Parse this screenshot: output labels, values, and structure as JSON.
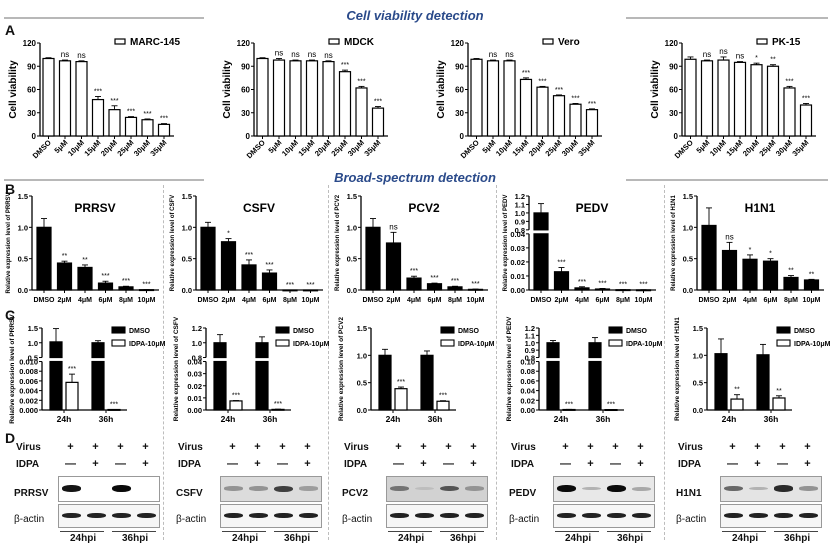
{
  "sections": {
    "top_title": "Cell viability detection",
    "mid_title": "Broad-spectrum detection",
    "letters": [
      "A",
      "B",
      "C",
      "D"
    ]
  },
  "chart_data": [
    {
      "panel": "A",
      "type": "bar",
      "legend": "MARC-145",
      "ylabel": "Cell viability",
      "ylim": [
        0,
        120
      ],
      "yticks": [
        0,
        30,
        60,
        90,
        120
      ],
      "categories": [
        "DMSO",
        "5μM",
        "10μM",
        "15μM",
        "20μM",
        "25μM",
        "30μM",
        "35μM"
      ],
      "values": [
        100,
        97,
        96,
        47,
        34,
        24,
        21,
        15
      ],
      "errors": [
        1,
        1,
        1,
        4,
        5,
        1,
        1,
        1
      ],
      "significance": [
        "",
        "ns",
        "ns",
        "***",
        "***",
        "***",
        "***",
        "***"
      ],
      "fill": "white"
    },
    {
      "panel": "A",
      "type": "bar",
      "legend": "MDCK",
      "ylabel": "Cell viability",
      "ylim": [
        0,
        120
      ],
      "yticks": [
        0,
        30,
        60,
        90,
        120
      ],
      "categories": [
        "DMSO",
        "5μM",
        "10μM",
        "15μM",
        "20μM",
        "25μM",
        "30μM",
        "35μM"
      ],
      "values": [
        100,
        98,
        97,
        97,
        96,
        83,
        62,
        36
      ],
      "errors": [
        1,
        2,
        1,
        1,
        1,
        2,
        2,
        2
      ],
      "significance": [
        "",
        "ns",
        "ns",
        "ns",
        "ns",
        "***",
        "***",
        "***"
      ],
      "fill": "white"
    },
    {
      "panel": "A",
      "type": "bar",
      "legend": "Vero",
      "ylabel": "Cell viability",
      "ylim": [
        0,
        120
      ],
      "yticks": [
        0,
        30,
        60,
        90,
        120
      ],
      "categories": [
        "DMSO",
        "5μM",
        "10μM",
        "15μM",
        "20μM",
        "25μM",
        "30μM",
        "35μM"
      ],
      "values": [
        99,
        97,
        97,
        73,
        63,
        52,
        41,
        34
      ],
      "errors": [
        1,
        1,
        1,
        2,
        1,
        1,
        1,
        1
      ],
      "significance": [
        "",
        "ns",
        "ns",
        "***",
        "***",
        "***",
        "***",
        "***"
      ],
      "fill": "white"
    },
    {
      "panel": "A",
      "type": "bar",
      "legend": "PK-15",
      "ylabel": "Cell viability",
      "ylim": [
        0,
        120
      ],
      "yticks": [
        0,
        30,
        60,
        90,
        120
      ],
      "categories": [
        "DMSO",
        "5μM",
        "10μM",
        "15μM",
        "20μM",
        "25μM",
        "30μM",
        "35μM"
      ],
      "values": [
        99,
        97,
        98,
        95,
        92,
        90,
        62,
        40
      ],
      "errors": [
        3,
        1,
        4,
        1,
        2,
        2,
        2,
        2
      ],
      "significance": [
        "",
        "ns",
        "ns",
        "ns",
        "*",
        "**",
        "***",
        "***"
      ],
      "fill": "white"
    },
    {
      "panel": "B",
      "type": "bar",
      "title": "PRRSV",
      "ylabel": "Relative expression level of PRRSV",
      "ylim": [
        0,
        1.5
      ],
      "yticks": [
        0.0,
        0.5,
        1.0,
        1.5
      ],
      "categories": [
        "DMSO",
        "2μM",
        "4μM",
        "6μM",
        "8μM",
        "10μM"
      ],
      "values": [
        1.0,
        0.43,
        0.36,
        0.11,
        0.05,
        0.005
      ],
      "errors": [
        0.14,
        0.03,
        0.04,
        0.03,
        0.01,
        0.002
      ],
      "significance": [
        "",
        "**",
        "**",
        "***",
        "***",
        "***"
      ],
      "fill": "black"
    },
    {
      "panel": "B",
      "type": "bar",
      "title": "CSFV",
      "ylabel": "Relative expression level of CSFV",
      "ylim": [
        0,
        1.5
      ],
      "yticks": [
        0.0,
        0.5,
        1.0,
        1.5
      ],
      "categories": [
        "DMSO",
        "2μM",
        "4μM",
        "6μM",
        "8μM",
        "10μM"
      ],
      "values": [
        1.0,
        0.77,
        0.4,
        0.27,
        0.0,
        0.0
      ],
      "errors": [
        0.08,
        0.05,
        0.08,
        0.05,
        0,
        0
      ],
      "significance": [
        "",
        "*",
        "***",
        "***",
        "***",
        "***"
      ],
      "fill": "black"
    },
    {
      "panel": "B",
      "type": "bar",
      "title": "PCV2",
      "ylabel": "Relative expression level of PCV2",
      "ylim": [
        0,
        1.5
      ],
      "yticks": [
        0.0,
        0.5,
        1.0,
        1.5
      ],
      "categories": [
        "DMSO",
        "2μM",
        "4μM",
        "6μM",
        "8μM",
        "10μM"
      ],
      "values": [
        1.0,
        0.75,
        0.19,
        0.1,
        0.05,
        0.01
      ],
      "errors": [
        0.14,
        0.17,
        0.03,
        0.01,
        0.01,
        0.005
      ],
      "significance": [
        "",
        "ns",
        "***",
        "***",
        "***",
        "***"
      ],
      "fill": "black"
    },
    {
      "panel": "B",
      "type": "bar",
      "title": "PEDV",
      "ylabel": "Relative expression level of PEDV",
      "broken_axis": {
        "lower": [
          0,
          0.04
        ],
        "upper": [
          0.8,
          1.2
        ]
      },
      "yticks_lower": [
        0.0,
        0.01,
        0.02,
        0.03,
        0.04
      ],
      "yticks_upper": [
        0.8,
        0.9,
        1.0,
        1.1,
        1.2
      ],
      "categories": [
        "DMSO",
        "2μM",
        "4μM",
        "6μM",
        "8μM",
        "10μM"
      ],
      "values": [
        1.0,
        0.013,
        0.0015,
        0.0007,
        0.0002,
        0.0001
      ],
      "errors": [
        0.11,
        0.003,
        0.0008,
        0.0004,
        0.0001,
        0.0001
      ],
      "significance": [
        "",
        "***",
        "***",
        "***",
        "***",
        "***"
      ],
      "fill": "black"
    },
    {
      "panel": "B",
      "type": "bar",
      "title": "H1N1",
      "ylabel": "Relative expression level of H1N1",
      "ylim": [
        0,
        1.5
      ],
      "yticks": [
        0.0,
        0.5,
        1.0,
        1.5
      ],
      "categories": [
        "DMSO",
        "2μM",
        "4μM",
        "6μM",
        "8μM",
        "10μM"
      ],
      "values": [
        1.03,
        0.63,
        0.49,
        0.46,
        0.2,
        0.16
      ],
      "errors": [
        0.28,
        0.13,
        0.07,
        0.04,
        0.03,
        0.01
      ],
      "significance": [
        "",
        "ns",
        "*",
        "*",
        "**",
        "**"
      ],
      "fill": "black"
    },
    {
      "panel": "C",
      "type": "bar",
      "ylabel": "Relative expression level of PRRSV",
      "broken_axis": {
        "lower": [
          0,
          0.01
        ],
        "upper": [
          0.5,
          1.5
        ]
      },
      "yticks_lower": [
        0.0,
        0.002,
        0.004,
        0.006,
        0.008,
        0.01
      ],
      "yticks_upper": [
        0.5,
        1.0,
        1.5
      ],
      "categories": [
        "24h",
        "36h"
      ],
      "series": [
        {
          "name": "DMSO",
          "values": [
            1.03,
            1.0
          ],
          "errors": [
            0.45,
            0.07
          ],
          "fill": "black"
        },
        {
          "name": "IDPA-10μM",
          "values": [
            0.0057,
            0.0001
          ],
          "errors": [
            0.0017,
            0.0
          ],
          "fill": "white"
        }
      ],
      "significance": [
        "***",
        "***"
      ]
    },
    {
      "panel": "C",
      "type": "bar",
      "ylabel": "Relative expression level of CSFV",
      "broken_axis": {
        "lower": [
          0,
          0.04
        ],
        "upper": [
          0.8,
          1.2
        ]
      },
      "yticks_lower": [
        0.0,
        0.01,
        0.02,
        0.03,
        0.04
      ],
      "yticks_upper": [
        0.8,
        1.0,
        1.2
      ],
      "categories": [
        "24h",
        "36h"
      ],
      "series": [
        {
          "name": "DMSO",
          "values": [
            1.0,
            1.0
          ],
          "errors": [
            0.11,
            0.08
          ],
          "fill": "black"
        },
        {
          "name": "IDPA-10μM",
          "values": [
            0.0075,
            0.0005
          ],
          "errors": [
            0.0003,
            0.0002
          ],
          "fill": "white"
        }
      ],
      "significance": [
        "***",
        "***"
      ]
    },
    {
      "panel": "C",
      "type": "bar",
      "ylabel": "Relative expression level of PCV2",
      "ylim": [
        0,
        1.5
      ],
      "yticks": [
        0.0,
        0.5,
        1.0,
        1.5
      ],
      "categories": [
        "24h",
        "36h"
      ],
      "series": [
        {
          "name": "DMSO",
          "values": [
            1.0,
            1.0
          ],
          "errors": [
            0.11,
            0.08
          ],
          "fill": "black"
        },
        {
          "name": "IDPA-10μM",
          "values": [
            0.39,
            0.16
          ],
          "errors": [
            0.03,
            0.01
          ],
          "fill": "white"
        }
      ],
      "significance": [
        "***",
        "***"
      ]
    },
    {
      "panel": "C",
      "type": "bar",
      "ylabel": "Relative expression level of PEDV",
      "broken_axis": {
        "lower": [
          0,
          0.1
        ],
        "upper": [
          0.8,
          1.2
        ]
      },
      "yticks_lower": [
        0.0,
        0.02,
        0.04,
        0.06,
        0.08,
        0.1
      ],
      "yticks_upper": [
        0.8,
        0.9,
        1.0,
        1.1,
        1.2
      ],
      "categories": [
        "24h",
        "36h"
      ],
      "series": [
        {
          "name": "DMSO",
          "values": [
            1.0,
            1.0
          ],
          "errors": [
            0.03,
            0.07
          ],
          "fill": "black"
        },
        {
          "name": "IDPA-10μM",
          "values": [
            0.001,
            0.0008
          ],
          "errors": [
            0.0003,
            0.0002
          ],
          "fill": "white"
        }
      ],
      "significance": [
        "***",
        "***"
      ]
    },
    {
      "panel": "C",
      "type": "bar",
      "ylabel": "Relative expression level of H1N1",
      "ylim": [
        0,
        1.5
      ],
      "yticks": [
        0.0,
        0.5,
        1.0,
        1.5
      ],
      "categories": [
        "24h",
        "36h"
      ],
      "series": [
        {
          "name": "DMSO",
          "values": [
            1.03,
            1.01
          ],
          "errors": [
            0.27,
            0.19
          ],
          "fill": "black"
        },
        {
          "name": "IDPA-10μM",
          "values": [
            0.2,
            0.22
          ],
          "errors": [
            0.08,
            0.04
          ],
          "fill": "white"
        }
      ],
      "significance": [
        "**",
        "**"
      ]
    }
  ],
  "western_blots": {
    "row_labels": {
      "virus": "Virus",
      "idpa": "IDPA",
      "actin": "β-actin"
    },
    "virus_signs": [
      "+",
      "+",
      "+",
      "+"
    ],
    "idpa_signs": [
      "—",
      "+",
      "—",
      "+"
    ],
    "timepoints": [
      "24hpi",
      "36hpi"
    ],
    "panels": [
      {
        "target": "PRRSV",
        "band_intensity": [
          0.95,
          0.0,
          1.0,
          0.0
        ],
        "bg": "#ffffff"
      },
      {
        "target": "CSFV",
        "band_intensity": [
          0.35,
          0.35,
          0.75,
          0.3
        ],
        "bg": "#dcdcdc"
      },
      {
        "target": "PCV2",
        "band_intensity": [
          0.5,
          0.15,
          0.65,
          0.35
        ],
        "bg": "#d2d2d2"
      },
      {
        "target": "PEDV",
        "band_intensity": [
          1.0,
          0.2,
          1.0,
          0.25
        ],
        "bg": "#e8e8e8"
      },
      {
        "target": "H1N1",
        "band_intensity": [
          0.55,
          0.2,
          0.85,
          0.35
        ],
        "bg": "#e4e4e4"
      }
    ]
  }
}
